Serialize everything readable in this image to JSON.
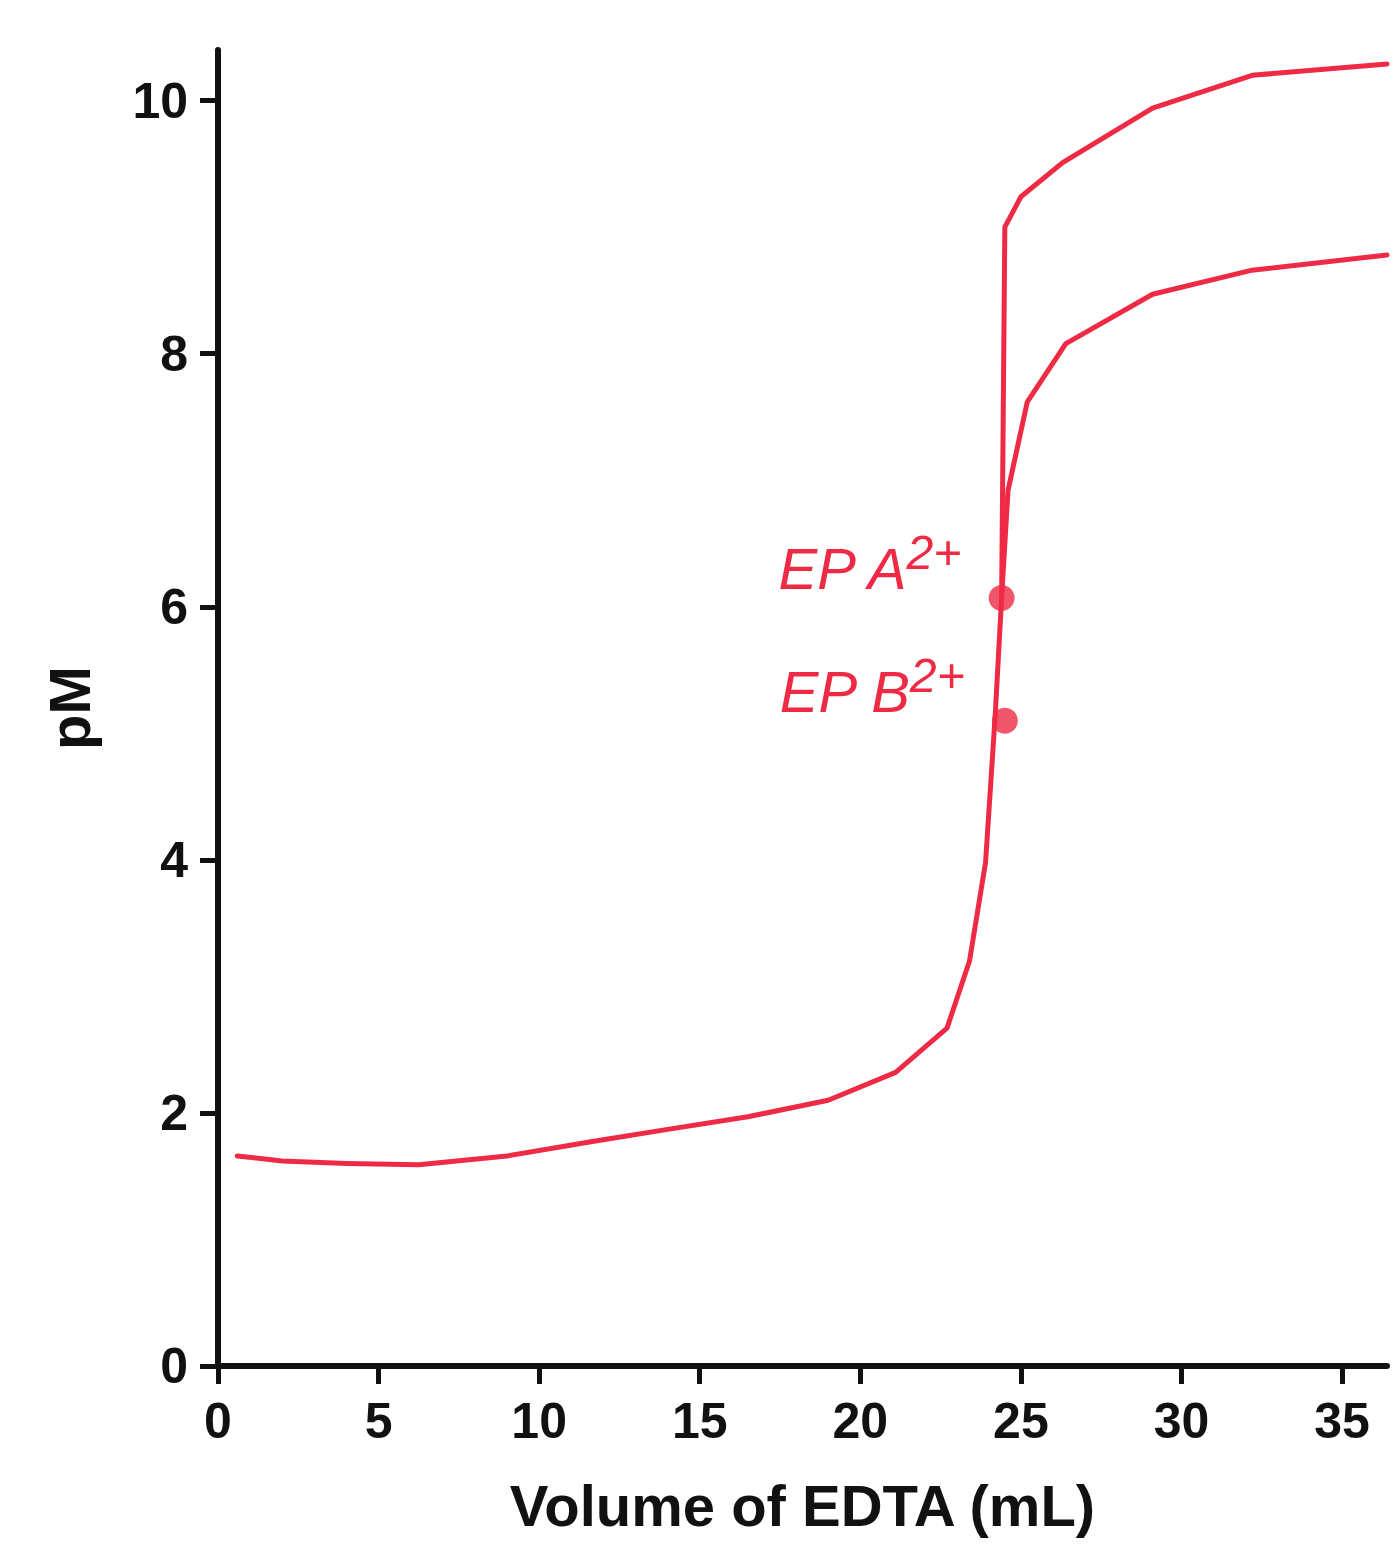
{
  "chart_data": {
    "type": "line",
    "xlabel": "Volume of EDTA (mL)",
    "ylabel": "pM",
    "xlim": [
      0,
      36.4
    ],
    "ylim": [
      0,
      10.4
    ],
    "xticks": [
      0,
      5,
      10,
      15,
      20,
      25,
      30,
      35
    ],
    "yticks": [
      0,
      2,
      4,
      6,
      8,
      10
    ],
    "grid": false,
    "marker": "none",
    "line_style": "solid",
    "series": [
      {
        "color": "#ee2a44",
        "x": [
          0.6,
          2,
          4,
          6.25,
          9,
          11.8,
          14,
          16.5,
          19,
          21.1,
          22.7,
          23.4,
          23.9,
          24.2,
          24.4,
          24.45,
          24.5,
          25,
          26.3,
          29.1,
          32.2,
          36.4
        ],
        "values": [
          1.66,
          1.62,
          1.6,
          1.59,
          1.66,
          1.78,
          1.87,
          1.97,
          2.1,
          2.32,
          2.67,
          3.2,
          3.98,
          5.14,
          6.07,
          7.5,
          9.0,
          9.24,
          9.51,
          9.94,
          10.2,
          10.29
        ]
      },
      {
        "color": "#ee2a44",
        "x": [
          24.4,
          24.6,
          25.2,
          26.4,
          29.1,
          32.2,
          36.4
        ],
        "values": [
          6.07,
          6.92,
          7.62,
          8.08,
          8.47,
          8.66,
          8.78
        ]
      },
      {
        "type": "scatter",
        "marker": "circle",
        "color": "#ee2a44",
        "x": [
          24.4,
          24.5
        ],
        "values": [
          6.07,
          5.1
        ]
      }
    ],
    "annotations": [
      {
        "text": "EP A$^{2+}$",
        "x": 24.4,
        "y": 6.07
      },
      {
        "text": "EP B$^{2+}$",
        "x": 24.5,
        "y": 5.1
      }
    ]
  }
}
